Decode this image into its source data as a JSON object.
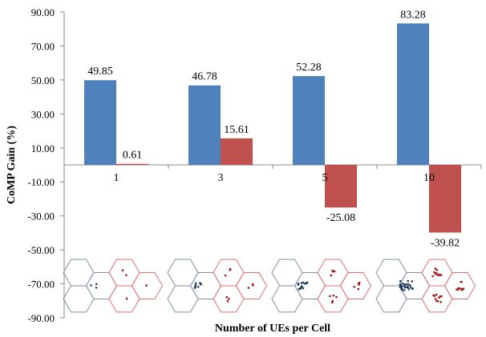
{
  "chart_data": {
    "type": "bar",
    "title": "",
    "xlabel": "Number of UEs per Cell",
    "ylabel": "CoMP Gain (%)",
    "ylim": [
      -90,
      90
    ],
    "yticks": [
      "90.00",
      "70.00",
      "50.00",
      "30.00",
      "10.00",
      "-10.00",
      "-30.00",
      "-50.00",
      "-70.00",
      "-90.00"
    ],
    "categories": [
      "1",
      "3",
      "5",
      "10"
    ],
    "series": [
      {
        "values": [
          49.85,
          46.78,
          52.28,
          83.28
        ],
        "labels": [
          "49.85",
          "46.78",
          "52.28",
          "83.28"
        ],
        "color": "#4F81BD"
      },
      {
        "values": [
          0.61,
          15.61,
          -25.08,
          -39.82
        ],
        "labels": [
          "0.61",
          "15.61",
          "-25.08",
          "-39.82"
        ],
        "color": "#C0504D"
      }
    ],
    "grid": false,
    "legend": "none",
    "inset_diagrams": [
      {
        "category": "1",
        "blue_points": 3,
        "red_points": 4
      },
      {
        "category": "3",
        "blue_points": 9,
        "red_points": 9
      },
      {
        "category": "5",
        "blue_points": 15,
        "red_points": 15
      },
      {
        "category": "10",
        "blue_points": 30,
        "red_points": 30
      }
    ],
    "colors": {
      "hex_blue": "#7F8FA6",
      "hex_red": "#E07070",
      "dot_blue": "#1F3A5F",
      "dot_red": "#A01818",
      "axis": "#888888"
    }
  }
}
